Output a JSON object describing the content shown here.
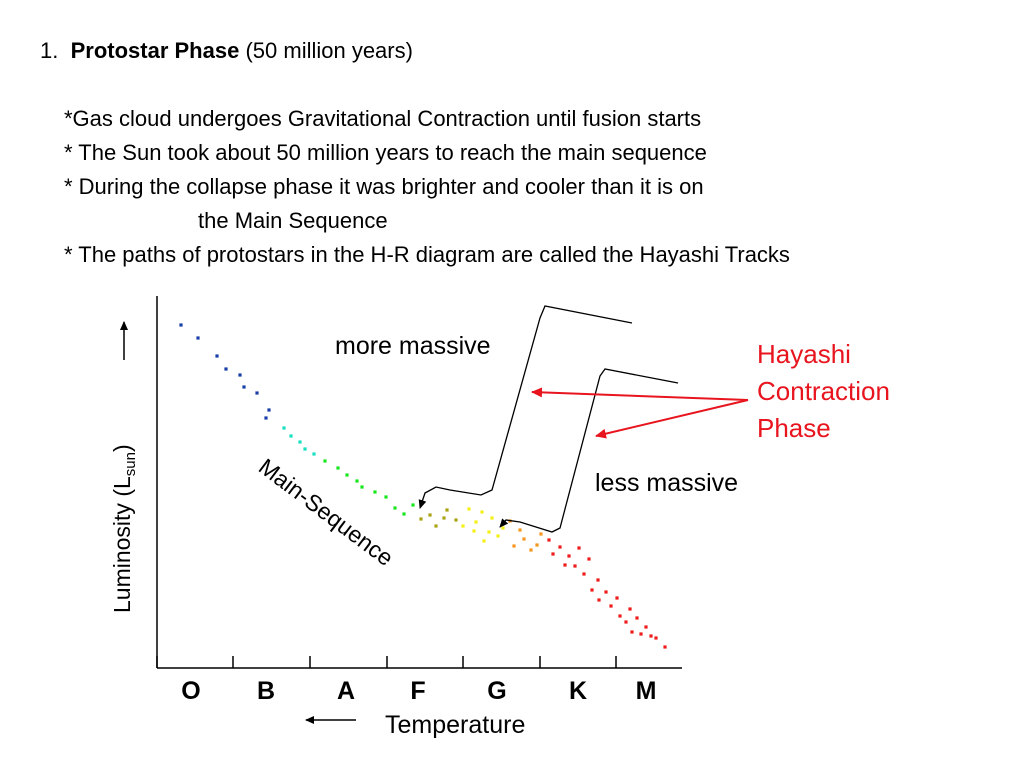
{
  "heading": {
    "number": "1.",
    "title": "Protostar Phase",
    "duration": "(50 million years)"
  },
  "bullets": [
    "*Gas cloud undergoes Gravitational Contraction until fusion starts",
    "* The Sun took about 50 million years to reach the main sequence",
    "* During the collapse phase it was brighter and cooler than it is on",
    "the Main Sequence",
    "* The paths of protostars in the H-R diagram are called the Hayashi Tracks"
  ],
  "diagram": {
    "y_axis_label_main": "Luminosity (L",
    "y_axis_label_sub": "sun",
    "y_axis_label_close": ")",
    "x_axis_label": "Temperature",
    "spectral_classes": [
      "O",
      "B",
      "A",
      "F",
      "G",
      "K",
      "M"
    ],
    "main_sequence_label": "Main-Sequence",
    "more_massive_label": "more massive",
    "less_massive_label": "less massive",
    "hayashi_label": [
      "Hayashi",
      "Contraction",
      "Phase"
    ],
    "colors": {
      "hayashi_red": "#e8141e",
      "axis": "#000000",
      "ms_blue": "#1a3ea8",
      "ms_cyan": "#18e0c0",
      "ms_green": "#19e61e",
      "ms_olive": "#a9a413",
      "ms_yellow": "#f5f016",
      "ms_orange": "#f5961e",
      "ms_red": "#ee1c1c"
    }
  }
}
